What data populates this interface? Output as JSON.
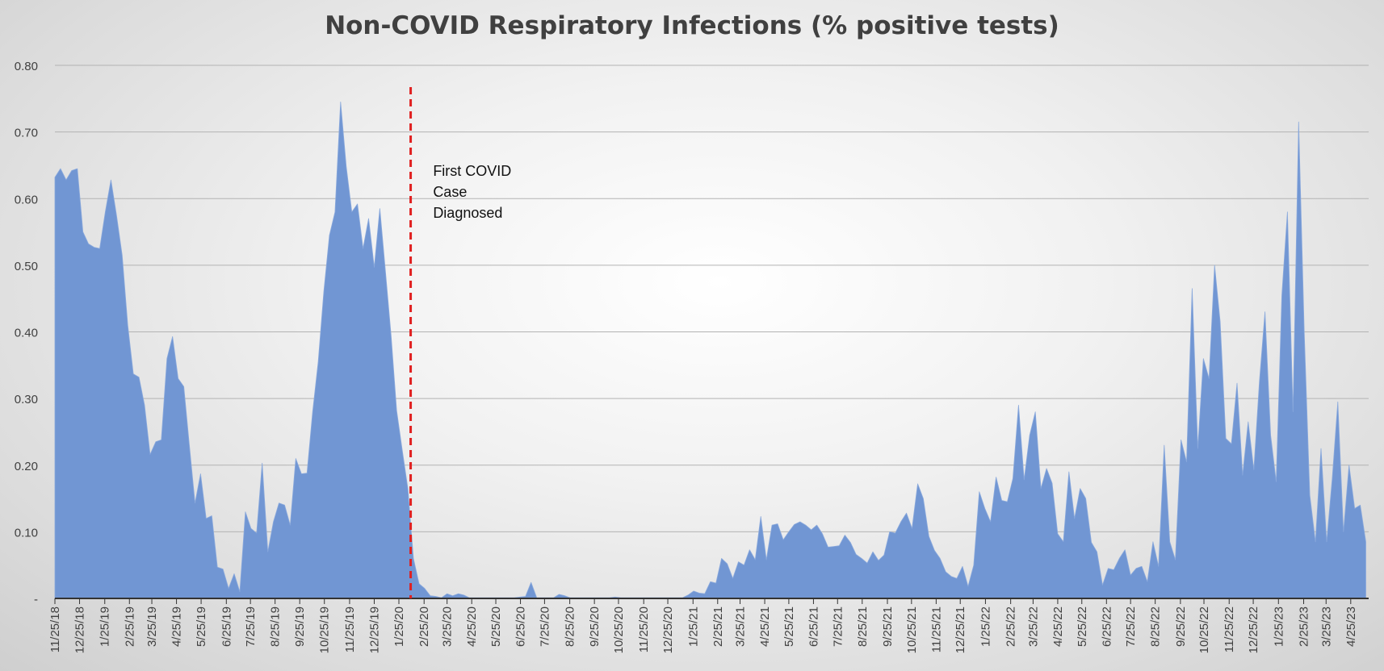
{
  "chart_data": {
    "type": "area",
    "title": "Non-COVID Respiratory Infections (% positive tests)",
    "xlabel": "",
    "ylabel": "",
    "ylim": [
      0,
      0.8
    ],
    "y_ticks": [
      {
        "value": 0,
        "label": "-"
      },
      {
        "value": 0.1,
        "label": "0.10"
      },
      {
        "value": 0.2,
        "label": "0.20"
      },
      {
        "value": 0.3,
        "label": "0.30"
      },
      {
        "value": 0.4,
        "label": "0.40"
      },
      {
        "value": 0.5,
        "label": "0.50"
      },
      {
        "value": 0.6,
        "label": "0.60"
      },
      {
        "value": 0.7,
        "label": "0.70"
      },
      {
        "value": 0.8,
        "label": "0.80"
      }
    ],
    "grid": true,
    "x_start_week": 0,
    "x_end_week": 234.5,
    "x_ticks": [
      {
        "week": 0,
        "label": "11/25/18"
      },
      {
        "week": 4.4,
        "label": "12/25/18"
      },
      {
        "week": 8.9,
        "label": "1/25/19"
      },
      {
        "week": 13.3,
        "label": "2/25/19"
      },
      {
        "week": 17.3,
        "label": "3/25/19"
      },
      {
        "week": 21.7,
        "label": "4/25/19"
      },
      {
        "week": 26.1,
        "label": "5/25/19"
      },
      {
        "week": 30.6,
        "label": "6/25/19"
      },
      {
        "week": 34.9,
        "label": "7/25/19"
      },
      {
        "week": 39.3,
        "label": "8/25/19"
      },
      {
        "week": 43.7,
        "label": "9/25/19"
      },
      {
        "week": 48.1,
        "label": "10/25/19"
      },
      {
        "week": 52.6,
        "label": "11/25/19"
      },
      {
        "week": 57,
        "label": "12/25/19"
      },
      {
        "week": 61.4,
        "label": "1/25/20"
      },
      {
        "week": 65.9,
        "label": "2/25/20"
      },
      {
        "week": 70,
        "label": "3/25/20"
      },
      {
        "week": 74.4,
        "label": "4/25/20"
      },
      {
        "week": 78.7,
        "label": "5/25/20"
      },
      {
        "week": 83.1,
        "label": "6/25/20"
      },
      {
        "week": 87.4,
        "label": "7/25/20"
      },
      {
        "week": 91.9,
        "label": "8/25/20"
      },
      {
        "week": 96.3,
        "label": "9/25/20"
      },
      {
        "week": 100.6,
        "label": "10/25/20"
      },
      {
        "week": 105.1,
        "label": "11/25/20"
      },
      {
        "week": 109.4,
        "label": "12/25/20"
      },
      {
        "week": 113.9,
        "label": "1/25/21"
      },
      {
        "week": 118.3,
        "label": "2/25/21"
      },
      {
        "week": 122.3,
        "label": "3/25/21"
      },
      {
        "week": 126.7,
        "label": "4/25/21"
      },
      {
        "week": 131,
        "label": "5/25/21"
      },
      {
        "week": 135.4,
        "label": "6/25/21"
      },
      {
        "week": 139.7,
        "label": "7/25/21"
      },
      {
        "week": 144.1,
        "label": "8/25/21"
      },
      {
        "week": 148.6,
        "label": "9/25/21"
      },
      {
        "week": 152.9,
        "label": "10/25/21"
      },
      {
        "week": 157.3,
        "label": "11/25/21"
      },
      {
        "week": 161.6,
        "label": "12/25/21"
      },
      {
        "week": 166.1,
        "label": "1/25/22"
      },
      {
        "week": 170.6,
        "label": "2/25/22"
      },
      {
        "week": 174.6,
        "label": "3/25/22"
      },
      {
        "week": 179,
        "label": "4/25/22"
      },
      {
        "week": 183.3,
        "label": "5/25/22"
      },
      {
        "week": 187.7,
        "label": "6/25/22"
      },
      {
        "week": 192,
        "label": "7/25/22"
      },
      {
        "week": 196.4,
        "label": "8/25/22"
      },
      {
        "week": 200.9,
        "label": "9/25/22"
      },
      {
        "week": 205.1,
        "label": "10/25/22"
      },
      {
        "week": 209.6,
        "label": "11/25/22"
      },
      {
        "week": 213.9,
        "label": "12/25/22"
      },
      {
        "week": 218.4,
        "label": "1/25/23"
      },
      {
        "week": 222.9,
        "label": "2/25/23"
      },
      {
        "week": 226.9,
        "label": "3/25/23"
      },
      {
        "week": 231.3,
        "label": "4/25/23"
      }
    ],
    "series": [
      {
        "name": "Non-COVID Respiratory Infections (% positive tests)",
        "color": "#7196d3",
        "points": [
          [
            0,
            0.632
          ],
          [
            1,
            0.645
          ],
          [
            2,
            0.628
          ],
          [
            3,
            0.642
          ],
          [
            4,
            0.645
          ],
          [
            5,
            0.55
          ],
          [
            6,
            0.532
          ],
          [
            7,
            0.527
          ],
          [
            8,
            0.525
          ],
          [
            9,
            0.58
          ],
          [
            10,
            0.628
          ],
          [
            11,
            0.575
          ],
          [
            12,
            0.515
          ],
          [
            13,
            0.41
          ],
          [
            14,
            0.337
          ],
          [
            15,
            0.332
          ],
          [
            16,
            0.29
          ],
          [
            17,
            0.216
          ],
          [
            18,
            0.235
          ],
          [
            19,
            0.238
          ],
          [
            20,
            0.36
          ],
          [
            21,
            0.393
          ],
          [
            22,
            0.33
          ],
          [
            23,
            0.318
          ],
          [
            24,
            0.23
          ],
          [
            25,
            0.143
          ],
          [
            26,
            0.187
          ],
          [
            27,
            0.12
          ],
          [
            28,
            0.124
          ],
          [
            29,
            0.047
          ],
          [
            30,
            0.044
          ],
          [
            31,
            0.015
          ],
          [
            32,
            0.037
          ],
          [
            33,
            0.01
          ],
          [
            34,
            0.13
          ],
          [
            35,
            0.105
          ],
          [
            36,
            0.098
          ],
          [
            37,
            0.203
          ],
          [
            38,
            0.07
          ],
          [
            39,
            0.115
          ],
          [
            40,
            0.143
          ],
          [
            41,
            0.14
          ],
          [
            42,
            0.11
          ],
          [
            43,
            0.21
          ],
          [
            44,
            0.187
          ],
          [
            45,
            0.188
          ],
          [
            46,
            0.28
          ],
          [
            47,
            0.355
          ],
          [
            48,
            0.46
          ],
          [
            49,
            0.545
          ],
          [
            50,
            0.58
          ],
          [
            51,
            0.745
          ],
          [
            52,
            0.648
          ],
          [
            53,
            0.58
          ],
          [
            54,
            0.592
          ],
          [
            55,
            0.525
          ],
          [
            56,
            0.57
          ],
          [
            57,
            0.497
          ],
          [
            58,
            0.585
          ],
          [
            59,
            0.49
          ],
          [
            60,
            0.395
          ],
          [
            61,
            0.282
          ],
          [
            62,
            0.222
          ],
          [
            63,
            0.165
          ],
          [
            64,
            0.06
          ],
          [
            65,
            0.022
          ],
          [
            66,
            0.015
          ],
          [
            67,
            0.004
          ],
          [
            68,
            0.003
          ],
          [
            69,
            0.001
          ],
          [
            70,
            0.007
          ],
          [
            71,
            0.004
          ],
          [
            72,
            0.007
          ],
          [
            73,
            0.005
          ],
          [
            74,
            0.001
          ],
          [
            75,
            0.001
          ],
          [
            76,
            0.001
          ],
          [
            77,
            0.001
          ],
          [
            78,
            0.001
          ],
          [
            79,
            0.001
          ],
          [
            80,
            0.001
          ],
          [
            81,
            0.001
          ],
          [
            82,
            0.001
          ],
          [
            83,
            0.002
          ],
          [
            84,
            0.003
          ],
          [
            85,
            0.024
          ],
          [
            86,
            0.001
          ],
          [
            87,
            0.001
          ],
          [
            88,
            0.001
          ],
          [
            89,
            0.001
          ],
          [
            90,
            0.006
          ],
          [
            91,
            0.004
          ],
          [
            92,
            0.001
          ],
          [
            93,
            0.001
          ],
          [
            94,
            0.001
          ],
          [
            95,
            0.001
          ],
          [
            96,
            0.001
          ],
          [
            97,
            0.001
          ],
          [
            98,
            0.001
          ],
          [
            99,
            0.001
          ],
          [
            100,
            0.002
          ],
          [
            101,
            0.001
          ],
          [
            102,
            0.001
          ],
          [
            103,
            0.001
          ],
          [
            104,
            0.001
          ],
          [
            105,
            0.001
          ],
          [
            106,
            0.001
          ],
          [
            107,
            0.001
          ],
          [
            108,
            0.001
          ],
          [
            109,
            0.001
          ],
          [
            110,
            0.001
          ],
          [
            111,
            0.001
          ],
          [
            112,
            0.001
          ],
          [
            113,
            0.005
          ],
          [
            114,
            0.011
          ],
          [
            115,
            0.008
          ],
          [
            116,
            0.007
          ],
          [
            117,
            0.025
          ],
          [
            118,
            0.023
          ],
          [
            119,
            0.06
          ],
          [
            120,
            0.052
          ],
          [
            121,
            0.03
          ],
          [
            122,
            0.055
          ],
          [
            123,
            0.05
          ],
          [
            124,
            0.073
          ],
          [
            125,
            0.058
          ],
          [
            126,
            0.123
          ],
          [
            127,
            0.058
          ],
          [
            128,
            0.11
          ],
          [
            129,
            0.112
          ],
          [
            130,
            0.088
          ],
          [
            131,
            0.1
          ],
          [
            132,
            0.111
          ],
          [
            133,
            0.115
          ],
          [
            134,
            0.11
          ],
          [
            135,
            0.103
          ],
          [
            136,
            0.11
          ],
          [
            137,
            0.097
          ],
          [
            138,
            0.077
          ],
          [
            139,
            0.078
          ],
          [
            140,
            0.079
          ],
          [
            141,
            0.095
          ],
          [
            142,
            0.084
          ],
          [
            143,
            0.066
          ],
          [
            144,
            0.06
          ],
          [
            145,
            0.053
          ],
          [
            146,
            0.07
          ],
          [
            147,
            0.057
          ],
          [
            148,
            0.065
          ],
          [
            149,
            0.1
          ],
          [
            150,
            0.098
          ],
          [
            151,
            0.115
          ],
          [
            152,
            0.128
          ],
          [
            153,
            0.105
          ],
          [
            154,
            0.172
          ],
          [
            155,
            0.15
          ],
          [
            156,
            0.093
          ],
          [
            157,
            0.072
          ],
          [
            158,
            0.06
          ],
          [
            159,
            0.04
          ],
          [
            160,
            0.033
          ],
          [
            161,
            0.03
          ],
          [
            162,
            0.048
          ],
          [
            163,
            0.018
          ],
          [
            164,
            0.05
          ],
          [
            165,
            0.16
          ],
          [
            166,
            0.135
          ],
          [
            167,
            0.115
          ],
          [
            168,
            0.182
          ],
          [
            169,
            0.147
          ],
          [
            170,
            0.145
          ],
          [
            171,
            0.18
          ],
          [
            172,
            0.29
          ],
          [
            173,
            0.178
          ],
          [
            174,
            0.245
          ],
          [
            175,
            0.28
          ],
          [
            176,
            0.165
          ],
          [
            177,
            0.195
          ],
          [
            178,
            0.173
          ],
          [
            179,
            0.097
          ],
          [
            180,
            0.085
          ],
          [
            181,
            0.19
          ],
          [
            182,
            0.12
          ],
          [
            183,
            0.165
          ],
          [
            184,
            0.15
          ],
          [
            185,
            0.084
          ],
          [
            186,
            0.07
          ],
          [
            187,
            0.02
          ],
          [
            188,
            0.045
          ],
          [
            189,
            0.043
          ],
          [
            190,
            0.06
          ],
          [
            191,
            0.073
          ],
          [
            192,
            0.035
          ],
          [
            193,
            0.045
          ],
          [
            194,
            0.048
          ],
          [
            195,
            0.025
          ],
          [
            196,
            0.085
          ],
          [
            197,
            0.048
          ],
          [
            198,
            0.23
          ],
          [
            199,
            0.085
          ],
          [
            200,
            0.058
          ],
          [
            201,
            0.238
          ],
          [
            202,
            0.205
          ],
          [
            203,
            0.465
          ],
          [
            204,
            0.225
          ],
          [
            205,
            0.36
          ],
          [
            206,
            0.33
          ],
          [
            207,
            0.5
          ],
          [
            208,
            0.415
          ],
          [
            209,
            0.24
          ],
          [
            210,
            0.232
          ],
          [
            211,
            0.323
          ],
          [
            212,
            0.185
          ],
          [
            213,
            0.265
          ],
          [
            214,
            0.193
          ],
          [
            215,
            0.325
          ],
          [
            216,
            0.43
          ],
          [
            217,
            0.245
          ],
          [
            218,
            0.175
          ],
          [
            219,
            0.455
          ],
          [
            220,
            0.58
          ],
          [
            221,
            0.28
          ],
          [
            222,
            0.715
          ],
          [
            223,
            0.4
          ],
          [
            224,
            0.155
          ],
          [
            225,
            0.085
          ],
          [
            226,
            0.225
          ],
          [
            227,
            0.085
          ],
          [
            228,
            0.18
          ],
          [
            229,
            0.295
          ],
          [
            230,
            0.1
          ],
          [
            231,
            0.2
          ],
          [
            232,
            0.135
          ],
          [
            233,
            0.14
          ],
          [
            234,
            0.085
          ]
        ]
      }
    ],
    "reference_line": {
      "week": 63.5,
      "color": "#e02020",
      "style": "dashed"
    },
    "annotation": {
      "lines": [
        "First COVID",
        "Case",
        "Diagnosed"
      ],
      "week": 67.5
    }
  },
  "colors": {
    "area_fill": "#7196d3",
    "axis": "#333333",
    "grid": "#b3b3b3",
    "text": "#404040"
  }
}
